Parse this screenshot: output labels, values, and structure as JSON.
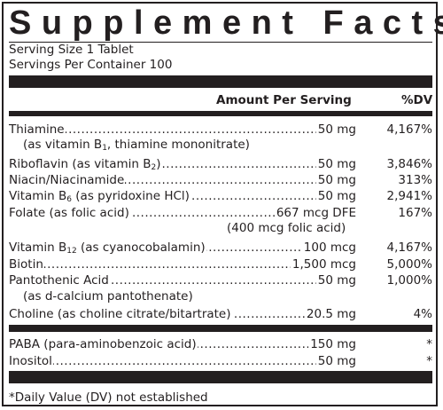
{
  "title": "Supplement Facts",
  "serving_size": "Serving Size 1 Tablet",
  "servings_per_container": "Servings Per Container 100",
  "header": {
    "amount": "Amount Per Serving",
    "dv": "%DV"
  },
  "dots": "................................................................................................................",
  "rows": [
    {
      "name": "Thiamine ",
      "amount": "50 mg",
      "dv": "4,167%"
    },
    {
      "name": "Riboflavin (as vitamin B2)",
      "amount": "50 mg",
      "dv": "3,846%"
    },
    {
      "name": "Niacin/Niacinamide",
      "amount": "50 mg",
      "dv": "313%"
    },
    {
      "name": "Vitamin B6 (as pyridoxine HCl)",
      "amount": "50 mg",
      "dv": "2,941%"
    },
    {
      "name": "Folate (as folic acid)",
      "amount": "667 mcg DFE",
      "dv": "167%"
    },
    {
      "name": "Vitamin B12 (as cyanocobalamin) ",
      "amount": "100 mcg",
      "dv": "4,167%"
    },
    {
      "name": "Biotin",
      "amount": "1,500 mcg",
      "dv": "5,000%"
    },
    {
      "name": "Pantothenic Acid",
      "amount": "50 mg",
      "dv": "1,000%"
    },
    {
      "name": "Choline (as choline citrate/bitartrate)",
      "amount": "20.5 mg",
      "dv": "4%"
    },
    {
      "name": "PABA (para-aminobenzoic acid)",
      "amount": "150 mg",
      "dv": "*"
    },
    {
      "name": "Inositol",
      "amount": "50 mg",
      "dv": "*"
    }
  ],
  "sublines": {
    "thiamine": "(as vitamin B1, thiamine mononitrate)",
    "folate": "(400 mcg folic acid)",
    "pantothenic": "(as d-calcium pantothenate)"
  },
  "footnote": "*Daily Value (DV) not established"
}
